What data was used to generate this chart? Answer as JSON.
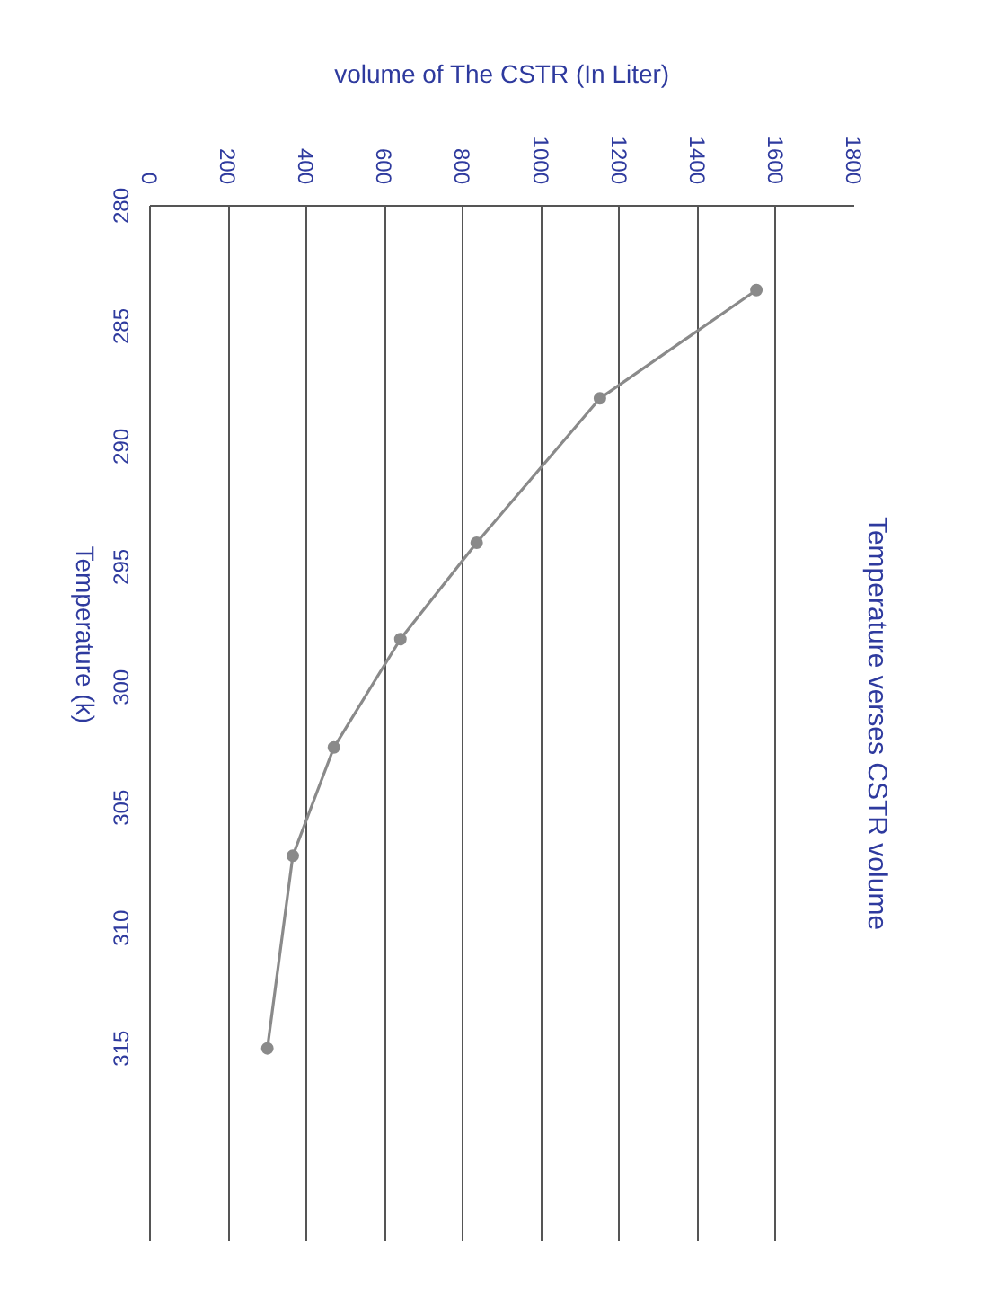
{
  "chart_data": {
    "type": "line",
    "title": "Temperature verses CSTR volume",
    "xlabel": "volume of The CSTR (In Liter)",
    "ylabel": "Temperature (k)",
    "x": [
      1550,
      1150,
      835,
      640,
      470,
      365,
      300
    ],
    "values": [
      283.5,
      288,
      294,
      298,
      302.5,
      307,
      315
    ],
    "color": "#8a8a8a",
    "marker": "circle",
    "xlim": [
      0,
      1800
    ],
    "xticks": [
      0,
      200,
      400,
      600,
      800,
      1000,
      1200,
      1400,
      1600,
      1800
    ],
    "ylim": [
      323,
      280
    ],
    "yticks": [
      280,
      285,
      290,
      295,
      300,
      305,
      310,
      315
    ],
    "grid": "x"
  }
}
